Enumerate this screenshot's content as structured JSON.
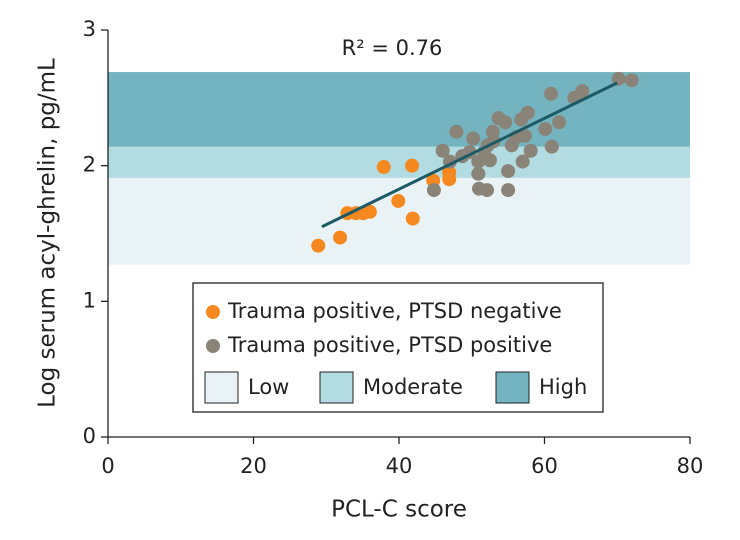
{
  "chart_data": {
    "type": "scatter",
    "xlabel": "PCL-C score",
    "ylabel": "Log serum acyl-ghrelin, pg/mL",
    "annotation": "R² = 0.76",
    "xlim": [
      0,
      80
    ],
    "ylim": [
      0,
      3
    ],
    "xticks": [
      0,
      20,
      40,
      60,
      80
    ],
    "yticks": [
      0,
      1,
      2,
      3
    ],
    "grid": false,
    "bands": [
      {
        "name": "Low",
        "range": [
          1.27,
          1.91
        ],
        "color": "#e9f3f6"
      },
      {
        "name": "Moderate",
        "range": [
          1.91,
          2.14
        ],
        "color": "#b2dbe2"
      },
      {
        "name": "High",
        "range": [
          2.14,
          2.69
        ],
        "color": "#74b4c1"
      }
    ],
    "regression": {
      "x": [
        29.4,
        70.0
      ],
      "y": [
        1.55,
        2.61
      ],
      "color": "#1d5a66"
    },
    "series": [
      {
        "name": "Trauma positive, PTSD negative",
        "color": "#f5891f",
        "x": [
          28.9,
          31.9,
          32.9,
          34.1,
          35.1,
          36.0,
          37.9,
          39.9,
          41.8,
          41.9,
          44.7,
          46.9,
          46.9
        ],
        "values": [
          1.41,
          1.47,
          1.65,
          1.65,
          1.65,
          1.66,
          1.99,
          1.74,
          2.0,
          1.61,
          1.89,
          1.95,
          1.9
        ]
      },
      {
        "name": "Trauma positive, PTSD positive",
        "color": "#8a8478",
        "x": [
          44.8,
          46.0,
          47.0,
          47.9,
          48.7,
          49.7,
          50.2,
          50.9,
          50.9,
          51.0,
          51.7,
          52.2,
          52.1,
          52.5,
          52.9,
          53.0,
          53.7,
          54.6,
          55.0,
          55.0,
          55.5,
          56.1,
          56.8,
          57.0,
          57.3,
          57.7,
          58.1,
          60.1,
          60.9,
          61.0,
          62.0,
          64.1,
          65.2,
          70.2,
          72.0
        ],
        "values": [
          1.82,
          2.11,
          2.03,
          2.25,
          2.07,
          2.1,
          2.2,
          2.03,
          1.94,
          1.83,
          2.1,
          2.15,
          1.82,
          2.04,
          2.25,
          2.18,
          2.35,
          2.32,
          1.82,
          1.96,
          2.15,
          2.21,
          2.34,
          2.03,
          2.22,
          2.39,
          2.11,
          2.27,
          2.53,
          2.14,
          2.32,
          2.5,
          2.55,
          2.64,
          2.63
        ]
      }
    ]
  }
}
